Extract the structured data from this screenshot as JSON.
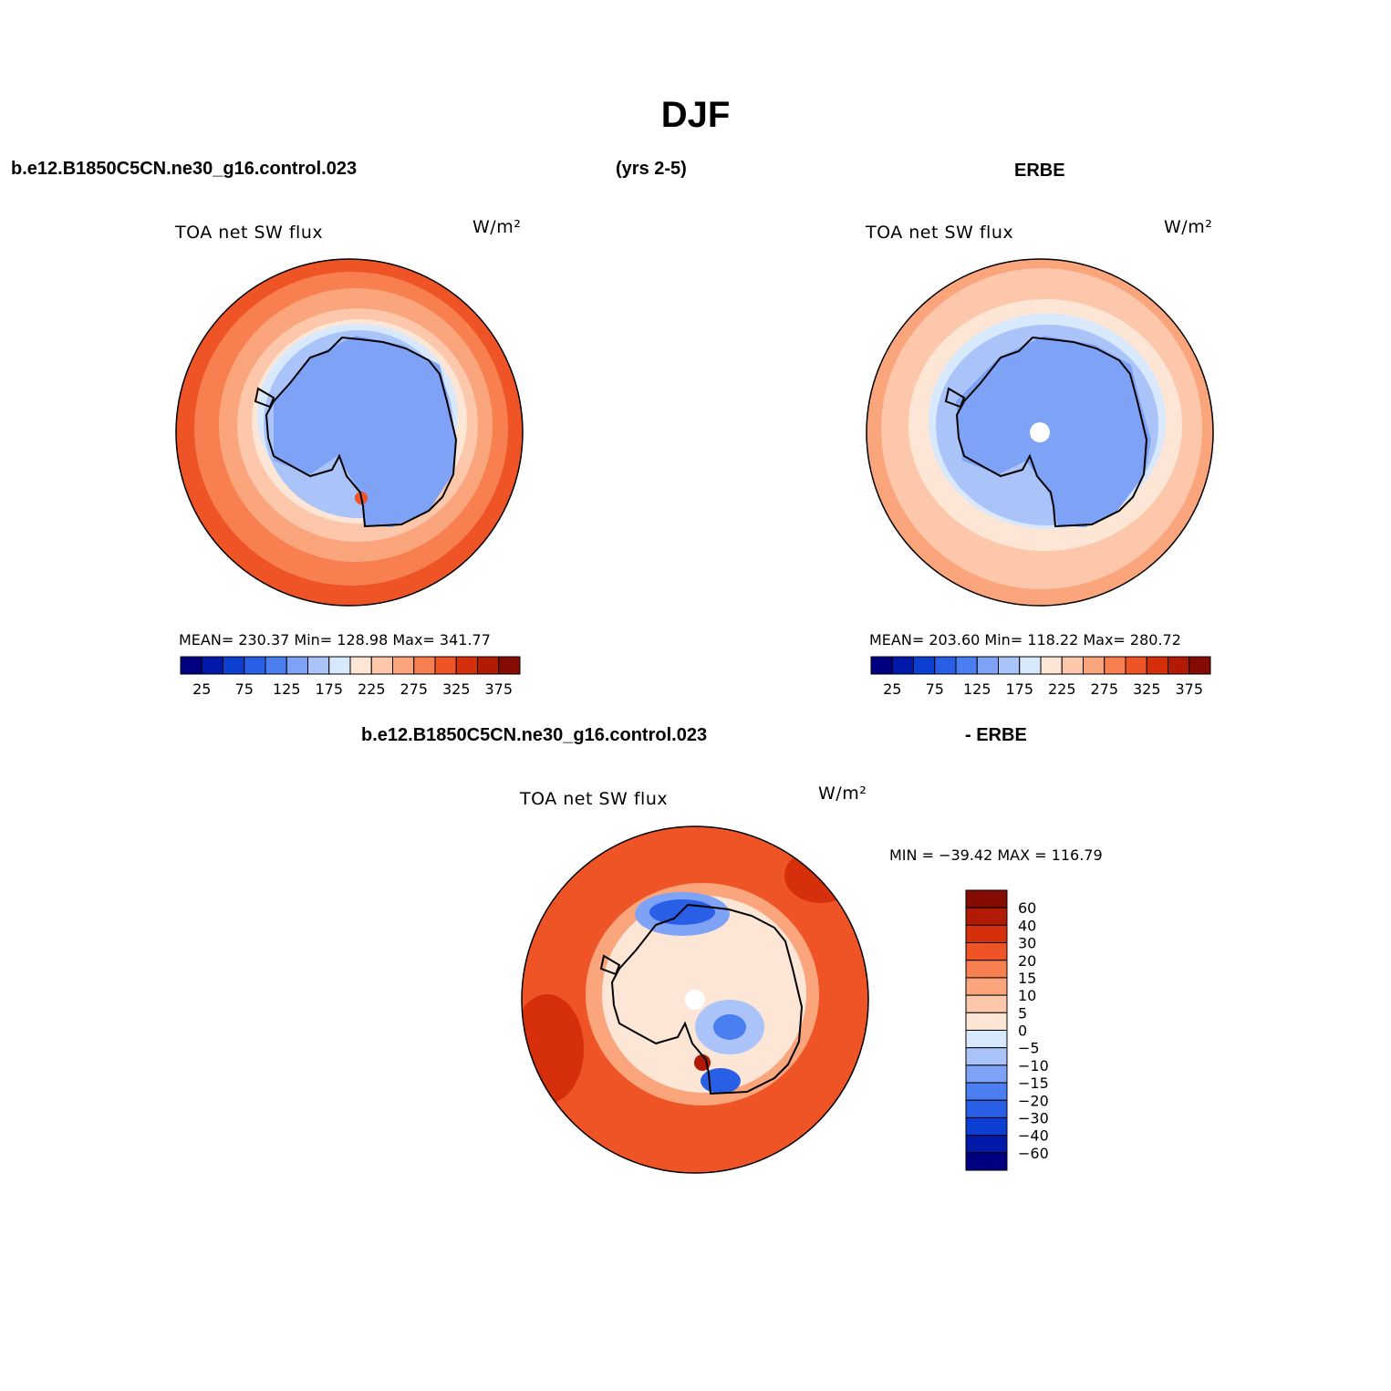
{
  "figure": {
    "title": "DJF",
    "top_left_header": "b.e12.B1850C5CN.ne30_g16.control.023",
    "top_center_header": "(yrs 2-5)",
    "top_right_header": "ERBE",
    "bottom_left_header": "b.e12.B1850C5CN.ne30_g16.control.023",
    "bottom_right_header": "- ERBE"
  },
  "panels": {
    "model": {
      "variable": "TOA net SW flux",
      "units": "W/m²",
      "stats": "MEAN= 230.37   Min= 128.98   Max= 341.77"
    },
    "obs": {
      "variable": "TOA net SW flux",
      "units": "W/m²",
      "stats": "MEAN= 203.60   Min= 118.22   Max= 280.72"
    },
    "diff": {
      "variable": "TOA net SW flux",
      "units": "W/m²",
      "stats": "MIN = −39.42  MAX = 116.79"
    }
  },
  "colorbars": {
    "absolute": {
      "labels": [
        "25",
        "75",
        "125",
        "175",
        "225",
        "275",
        "325",
        "375"
      ],
      "colors": [
        "#000080",
        "#0019a8",
        "#0b3ed1",
        "#285fe6",
        "#4b7ef0",
        "#7ea2f6",
        "#aac4fa",
        "#d8e8fd",
        "#fde6d6",
        "#fcc7aa",
        "#fba57c",
        "#f88050",
        "#ee5426",
        "#d62f0c",
        "#b11a05",
        "#850c02"
      ]
    },
    "difference": {
      "labels": [
        "60",
        "40",
        "30",
        "20",
        "15",
        "10",
        "5",
        "0",
        "−5",
        "−10",
        "−15",
        "−20",
        "−30",
        "−40",
        "−60"
      ],
      "colors": [
        "#850c02",
        "#b11a05",
        "#d62f0c",
        "#ee5426",
        "#f88050",
        "#fba57c",
        "#fcc7aa",
        "#fde6d6",
        "#d8e8fd",
        "#aac4fa",
        "#7ea2f6",
        "#4b7ef0",
        "#285fe6",
        "#0b3ed1",
        "#0019a8",
        "#000080"
      ]
    }
  }
}
